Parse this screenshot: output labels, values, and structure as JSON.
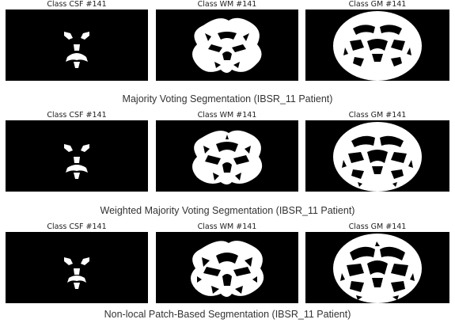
{
  "rows": [
    {
      "panel_titles": [
        "Class CSF #141",
        "Class WM #141",
        "Class GM #141"
      ],
      "caption": "Majority Voting Segmentation (IBSR_11 Patient)"
    },
    {
      "panel_titles": [
        "Class CSF #141",
        "Class WM #141",
        "Class GM #141"
      ],
      "caption": "Weighted Majority Voting Segmentation (IBSR_11 Patient)"
    },
    {
      "panel_titles": [
        "Class CSF #141",
        "Class WM #141",
        "Class GM #141"
      ],
      "caption": "Non-local Patch-Based Segmentation (IBSR_11 Patient)"
    }
  ],
  "colors": {
    "background": "#000000",
    "mask": "#ffffff"
  }
}
